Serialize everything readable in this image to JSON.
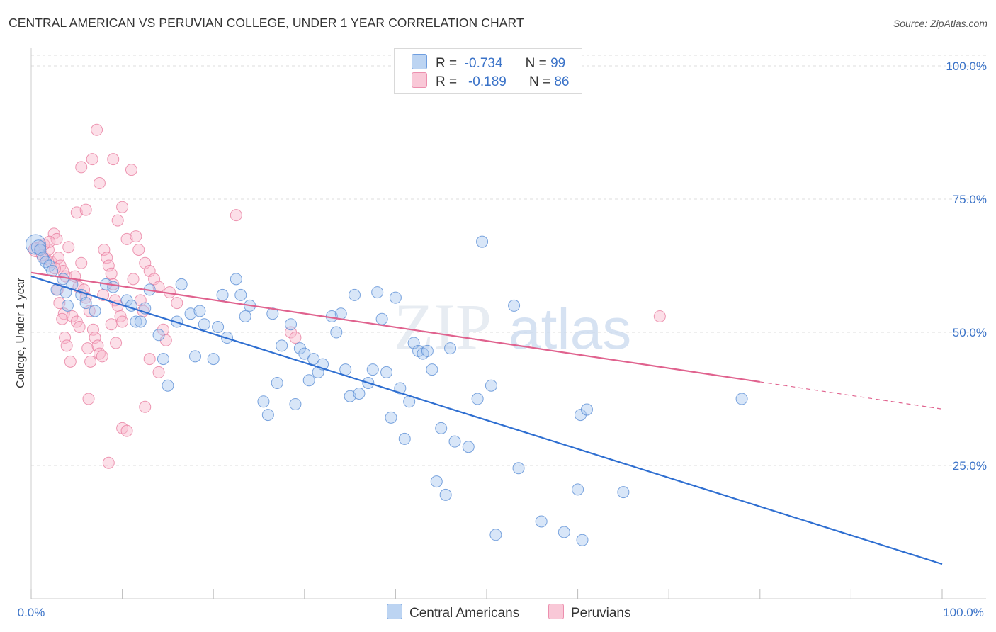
{
  "header": {
    "title": "CENTRAL AMERICAN VS PERUVIAN COLLEGE, UNDER 1 YEAR CORRELATION CHART",
    "source": "Source: ZipAtlas.com"
  },
  "watermark": {
    "zip": "ZIP",
    "atlas": "atlas"
  },
  "legend": {
    "series1": {
      "r_label": "R =",
      "r_value": "-0.734",
      "n_label": "N =",
      "n_value": "99"
    },
    "series2": {
      "r_label": "R =",
      "r_value": "-0.189",
      "n_label": "N =",
      "n_value": "86"
    }
  },
  "colors": {
    "blue_fill": "#a8c8f0",
    "blue_stroke": "#5b8fd6",
    "blue_line": "#2f6fd1",
    "pink_fill": "#f8b8cc",
    "pink_stroke": "#e87ea0",
    "pink_line": "#e0628e",
    "grid": "#dddddd",
    "tick_text": "#3b73c8"
  },
  "chart_data": {
    "type": "scatter",
    "title": "CENTRAL AMERICAN VS PERUVIAN COLLEGE, UNDER 1 YEAR CORRELATION CHART",
    "xlabel": "",
    "ylabel": "College, Under 1 year",
    "xlim": [
      0,
      100
    ],
    "ylim": [
      0,
      102
    ],
    "x_tick_labels": [
      "0.0%",
      "100.0%"
    ],
    "y_ticks": [
      25,
      50,
      75,
      100
    ],
    "y_tick_labels": [
      "25.0%",
      "50.0%",
      "75.0%",
      "100.0%"
    ],
    "grid": true,
    "legend_position": "bottom",
    "series": [
      {
        "name": "Central Americans",
        "color": "#5b8fd6",
        "trend": {
          "x": [
            0,
            100
          ],
          "y": [
            60.5,
            6.5
          ]
        },
        "points": [
          [
            0.5,
            66.5,
            14
          ],
          [
            0.8,
            66.0,
            10
          ],
          [
            1.0,
            65.5,
            8
          ],
          [
            1.3,
            64.0,
            8
          ],
          [
            1.6,
            63.2,
            8
          ],
          [
            2.0,
            62.5,
            8
          ],
          [
            2.3,
            61.5,
            8
          ],
          [
            3.5,
            60.0,
            8
          ],
          [
            4.5,
            59.0,
            8
          ],
          [
            2.8,
            58.0,
            8
          ],
          [
            3.8,
            57.5,
            8
          ],
          [
            4.0,
            55.0,
            8
          ],
          [
            5.5,
            57.0,
            8
          ],
          [
            6.0,
            55.5,
            8
          ],
          [
            7.0,
            54.0,
            8
          ],
          [
            8.2,
            59.0,
            8
          ],
          [
            9.0,
            58.5,
            8
          ],
          [
            10.5,
            56.0,
            8
          ],
          [
            11.0,
            55.0,
            8
          ],
          [
            12.5,
            54.5,
            8
          ],
          [
            13.0,
            58.0,
            8
          ],
          [
            11.5,
            52.0,
            8
          ],
          [
            12.0,
            52.0,
            8
          ],
          [
            14.0,
            49.5,
            8
          ],
          [
            14.5,
            45.0,
            8
          ],
          [
            15.0,
            40.0,
            8
          ],
          [
            16.0,
            52.0,
            8
          ],
          [
            16.5,
            59.0,
            8
          ],
          [
            17.5,
            53.5,
            8
          ],
          [
            18.0,
            45.5,
            8
          ],
          [
            18.5,
            54.0,
            8
          ],
          [
            19.0,
            51.5,
            8
          ],
          [
            20.0,
            45.0,
            8
          ],
          [
            20.5,
            51.0,
            8
          ],
          [
            21.0,
            57.0,
            8
          ],
          [
            21.5,
            49.0,
            8
          ],
          [
            22.5,
            60.0,
            8
          ],
          [
            23.0,
            57.0,
            8
          ],
          [
            23.5,
            53.0,
            8
          ],
          [
            24.0,
            55.0,
            8
          ],
          [
            25.5,
            37.0,
            8
          ],
          [
            26.0,
            34.5,
            8
          ],
          [
            26.5,
            53.5,
            8
          ],
          [
            27.0,
            40.5,
            8
          ],
          [
            27.5,
            47.5,
            8
          ],
          [
            28.5,
            51.5,
            8
          ],
          [
            29.0,
            36.5,
            8
          ],
          [
            29.5,
            47.0,
            8
          ],
          [
            30.0,
            46.0,
            8
          ],
          [
            30.5,
            41.0,
            8
          ],
          [
            31.0,
            45.0,
            8
          ],
          [
            31.5,
            42.5,
            8
          ],
          [
            32.0,
            44.0,
            8
          ],
          [
            33.0,
            53.0,
            8
          ],
          [
            33.5,
            50.0,
            8
          ],
          [
            34.0,
            53.5,
            8
          ],
          [
            34.5,
            43.0,
            8
          ],
          [
            35.0,
            38.0,
            8
          ],
          [
            35.5,
            57.0,
            8
          ],
          [
            36.0,
            38.5,
            8
          ],
          [
            37.0,
            40.5,
            8
          ],
          [
            37.5,
            43.0,
            8
          ],
          [
            38.0,
            57.5,
            8
          ],
          [
            38.5,
            52.5,
            8
          ],
          [
            39.0,
            42.5,
            8
          ],
          [
            39.5,
            34.0,
            8
          ],
          [
            40.0,
            56.5,
            8
          ],
          [
            40.5,
            39.5,
            8
          ],
          [
            41.0,
            30.0,
            8
          ],
          [
            41.5,
            37.0,
            8
          ],
          [
            42.0,
            48.0,
            8
          ],
          [
            42.5,
            46.5,
            8
          ],
          [
            43.0,
            46.0,
            8
          ],
          [
            43.5,
            46.5,
            8
          ],
          [
            44.0,
            43.0,
            8
          ],
          [
            44.5,
            22.0,
            8
          ],
          [
            45.0,
            32.0,
            8
          ],
          [
            45.5,
            19.5,
            8
          ],
          [
            46.0,
            47.0,
            8
          ],
          [
            46.5,
            29.5,
            8
          ],
          [
            48.0,
            28.5,
            8
          ],
          [
            49.0,
            37.5,
            8
          ],
          [
            49.5,
            67.0,
            8
          ],
          [
            50.5,
            40.0,
            8
          ],
          [
            51.0,
            12.0,
            8
          ],
          [
            53.0,
            55.0,
            8
          ],
          [
            53.5,
            24.5,
            8
          ],
          [
            56.0,
            14.5,
            8
          ],
          [
            58.5,
            12.5,
            8
          ],
          [
            60.5,
            11.0,
            8
          ],
          [
            60.0,
            20.5,
            8
          ],
          [
            60.3,
            34.5,
            8
          ],
          [
            61.0,
            35.5,
            8
          ],
          [
            65.0,
            20.0,
            8
          ],
          [
            78.0,
            37.5,
            8
          ]
        ]
      },
      {
        "name": "Peruvians",
        "color": "#e87ea0",
        "trend": {
          "x": [
            0,
            80,
            100
          ],
          "y": [
            61.2,
            40.7,
            35.6
          ]
        },
        "points": [
          [
            0.5,
            65.5,
            10
          ],
          [
            1.0,
            66.0,
            8
          ],
          [
            1.2,
            64.5,
            8
          ],
          [
            1.6,
            63.8,
            8
          ],
          [
            1.9,
            65.5,
            8
          ],
          [
            2.2,
            63.2,
            8
          ],
          [
            2.5,
            68.5,
            8
          ],
          [
            2.8,
            67.5,
            8
          ],
          [
            3.0,
            64.0,
            8
          ],
          [
            3.2,
            62.5,
            8
          ],
          [
            3.5,
            61.5,
            8
          ],
          [
            3.8,
            60.5,
            8
          ],
          [
            2.9,
            58.0,
            8
          ],
          [
            3.6,
            53.5,
            8
          ],
          [
            3.4,
            52.5,
            8
          ],
          [
            3.7,
            49.0,
            8
          ],
          [
            3.9,
            47.5,
            8
          ],
          [
            4.3,
            44.5,
            8
          ],
          [
            4.5,
            53.0,
            8
          ],
          [
            5.0,
            52.0,
            8
          ],
          [
            5.2,
            58.5,
            8
          ],
          [
            5.5,
            63.0,
            8
          ],
          [
            5.8,
            58.0,
            8
          ],
          [
            6.0,
            56.5,
            8
          ],
          [
            6.2,
            47.0,
            8
          ],
          [
            6.5,
            44.5,
            8
          ],
          [
            6.8,
            50.5,
            8
          ],
          [
            7.0,
            49.0,
            8
          ],
          [
            7.3,
            47.5,
            8
          ],
          [
            7.5,
            46.0,
            8
          ],
          [
            7.8,
            45.5,
            8
          ],
          [
            6.3,
            37.5,
            8
          ],
          [
            8.0,
            65.5,
            8
          ],
          [
            8.3,
            64.0,
            8
          ],
          [
            8.5,
            62.5,
            8
          ],
          [
            8.8,
            61.0,
            8
          ],
          [
            9.0,
            59.0,
            8
          ],
          [
            9.2,
            56.0,
            8
          ],
          [
            9.5,
            55.0,
            8
          ],
          [
            9.8,
            53.0,
            8
          ],
          [
            10.0,
            52.0,
            8
          ],
          [
            7.2,
            88.0,
            8
          ],
          [
            6.7,
            82.5,
            8
          ],
          [
            5.5,
            81.0,
            8
          ],
          [
            9.0,
            82.5,
            8
          ],
          [
            11.0,
            80.5,
            8
          ],
          [
            7.5,
            78.0,
            8
          ],
          [
            5.0,
            72.5,
            8
          ],
          [
            6.0,
            73.0,
            8
          ],
          [
            10.0,
            73.5,
            8
          ],
          [
            10.5,
            67.5,
            8
          ],
          [
            11.5,
            68.0,
            8
          ],
          [
            9.5,
            71.0,
            8
          ],
          [
            11.8,
            65.5,
            8
          ],
          [
            12.5,
            63.0,
            8
          ],
          [
            13.0,
            61.5,
            8
          ],
          [
            13.5,
            60.0,
            8
          ],
          [
            14.0,
            58.5,
            8
          ],
          [
            12.0,
            56.0,
            8
          ],
          [
            12.3,
            54.0,
            8
          ],
          [
            14.5,
            50.5,
            8
          ],
          [
            14.8,
            48.5,
            8
          ],
          [
            13.0,
            45.0,
            8
          ],
          [
            14.0,
            42.5,
            8
          ],
          [
            12.5,
            36.0,
            8
          ],
          [
            10.0,
            32.0,
            8
          ],
          [
            10.5,
            31.5,
            8
          ],
          [
            8.5,
            25.5,
            8
          ],
          [
            22.5,
            72.0,
            8
          ],
          [
            28.5,
            50.0,
            8
          ],
          [
            29.0,
            49.0,
            8
          ],
          [
            69.0,
            53.0,
            8
          ],
          [
            8.8,
            51.5,
            8
          ],
          [
            9.3,
            48.0,
            8
          ],
          [
            4.8,
            60.5,
            8
          ],
          [
            2.6,
            62.0,
            8
          ],
          [
            1.4,
            66.5,
            8
          ],
          [
            11.2,
            60.0,
            8
          ],
          [
            15.2,
            57.5,
            8
          ],
          [
            16.0,
            55.5,
            8
          ],
          [
            7.9,
            57.0,
            8
          ],
          [
            6.4,
            54.0,
            8
          ],
          [
            5.3,
            51.0,
            8
          ],
          [
            3.1,
            55.5,
            8
          ],
          [
            4.1,
            66.0,
            8
          ],
          [
            2.0,
            67.0,
            8
          ]
        ]
      }
    ]
  },
  "bottom_legend": {
    "item1": "Central Americans",
    "item2": "Peruvians"
  }
}
